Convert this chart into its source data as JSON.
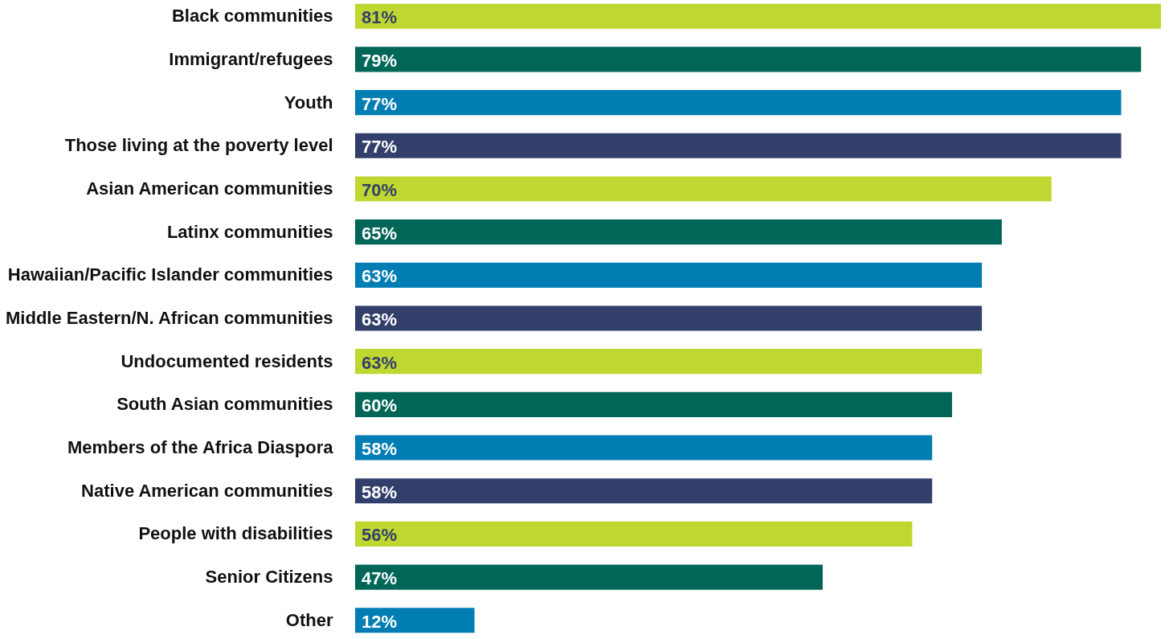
{
  "chart_data": {
    "type": "bar",
    "orientation": "horizontal",
    "data_labels": true,
    "value_labels": [
      "81%",
      "79%",
      "77%",
      "77%",
      "70%",
      "65%",
      "63%",
      "63%",
      "63%",
      "60%",
      "58%",
      "58%",
      "56%",
      "47%",
      "12%"
    ],
    "categories": [
      "Black communities",
      "Immigrant/refugees",
      "Youth",
      "Those living at the poverty level",
      "Asian American communities",
      "Latinx communities",
      "Hawaiian/Pacific Islander communities",
      "Middle Eastern/N. African communities",
      "Undocumented residents",
      "South Asian communities",
      "Members of the Africa Diaspora",
      "Native American communities",
      "People with disabilities",
      "Senior Citizens",
      "Other"
    ],
    "values": [
      81,
      79,
      77,
      77,
      70,
      65,
      63,
      63,
      63,
      60,
      58,
      58,
      56,
      47,
      12
    ],
    "colors": [
      "#bfd730",
      "#006657",
      "#007db3",
      "#333f6b",
      "#bfd730",
      "#006657",
      "#007db3",
      "#333f6b",
      "#bfd730",
      "#006657",
      "#007db3",
      "#333f6b",
      "#bfd730",
      "#006657",
      "#007db3"
    ]
  }
}
